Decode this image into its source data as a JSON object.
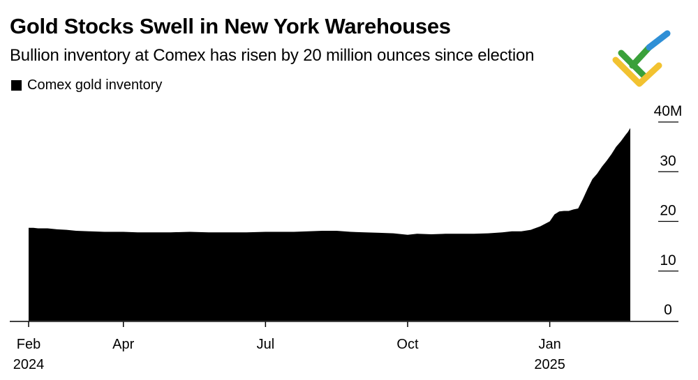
{
  "header": {
    "title": "Gold Stocks Swell in New York Warehouses",
    "subtitle": "Bullion inventory at Comex has risen by 20 million ounces since election"
  },
  "legend": {
    "label": "Comex gold inventory"
  },
  "colors": {
    "fill": "#000000",
    "axis": "#000000",
    "logo_green": "#3aa03a",
    "logo_blue": "#2f8fd6",
    "logo_yellow": "#f2c230"
  },
  "chart_data": {
    "type": "area",
    "title": "Gold Stocks Swell in New York Warehouses",
    "subtitle": "Bullion inventory at Comex has risen by 20 million ounces since election",
    "series": [
      {
        "name": "Comex gold inventory"
      }
    ],
    "ylim": [
      0,
      40
    ],
    "y_unit": "M",
    "y_ticks": [
      {
        "value": 40,
        "label": "40M"
      },
      {
        "value": 30,
        "label": "30"
      },
      {
        "value": 20,
        "label": "20"
      },
      {
        "value": 10,
        "label": "10"
      },
      {
        "value": 0,
        "label": "0"
      }
    ],
    "x_ticks": [
      {
        "month": 0,
        "label": "Feb",
        "sublabel": "2024"
      },
      {
        "month": 2,
        "label": "Apr",
        "sublabel": ""
      },
      {
        "month": 5,
        "label": "Jul",
        "sublabel": ""
      },
      {
        "month": 8,
        "label": "Oct",
        "sublabel": ""
      },
      {
        "month": 11,
        "label": "Jan",
        "sublabel": "2025"
      }
    ],
    "x_month_range": [
      0,
      12.7
    ],
    "points": [
      [
        0,
        18.7
      ],
      [
        0.1,
        18.7
      ],
      [
        0.2,
        18.6
      ],
      [
        0.4,
        18.6
      ],
      [
        0.6,
        18.4
      ],
      [
        0.8,
        18.3
      ],
      [
        1.0,
        18.1
      ],
      [
        1.3,
        18.0
      ],
      [
        1.6,
        17.9
      ],
      [
        1.8,
        17.9
      ],
      [
        2.0,
        17.9
      ],
      [
        2.3,
        17.8
      ],
      [
        2.6,
        17.8
      ],
      [
        3.0,
        17.8
      ],
      [
        3.4,
        17.9
      ],
      [
        3.8,
        17.8
      ],
      [
        4.2,
        17.8
      ],
      [
        4.6,
        17.8
      ],
      [
        5.0,
        17.9
      ],
      [
        5.3,
        17.9
      ],
      [
        5.6,
        17.9
      ],
      [
        5.9,
        18.0
      ],
      [
        6.2,
        18.1
      ],
      [
        6.5,
        18.1
      ],
      [
        6.8,
        17.9
      ],
      [
        7.1,
        17.8
      ],
      [
        7.4,
        17.7
      ],
      [
        7.7,
        17.6
      ],
      [
        8.0,
        17.3
      ],
      [
        8.2,
        17.5
      ],
      [
        8.5,
        17.4
      ],
      [
        8.8,
        17.5
      ],
      [
        9.1,
        17.5
      ],
      [
        9.4,
        17.5
      ],
      [
        9.7,
        17.6
      ],
      [
        10.0,
        17.8
      ],
      [
        10.2,
        18.0
      ],
      [
        10.4,
        18.0
      ],
      [
        10.6,
        18.3
      ],
      [
        10.8,
        19.0
      ],
      [
        11.0,
        20.0
      ],
      [
        11.1,
        21.4
      ],
      [
        11.2,
        22.0
      ],
      [
        11.3,
        22.1
      ],
      [
        11.4,
        22.1
      ],
      [
        11.5,
        22.4
      ],
      [
        11.6,
        22.6
      ],
      [
        11.7,
        24.5
      ],
      [
        11.8,
        26.6
      ],
      [
        11.9,
        28.5
      ],
      [
        12.0,
        29.6
      ],
      [
        12.1,
        31.0
      ],
      [
        12.2,
        32.2
      ],
      [
        12.3,
        33.5
      ],
      [
        12.4,
        35.0
      ],
      [
        12.5,
        36.1
      ],
      [
        12.6,
        37.4
      ],
      [
        12.65,
        38.0
      ],
      [
        12.7,
        38.8
      ]
    ]
  }
}
